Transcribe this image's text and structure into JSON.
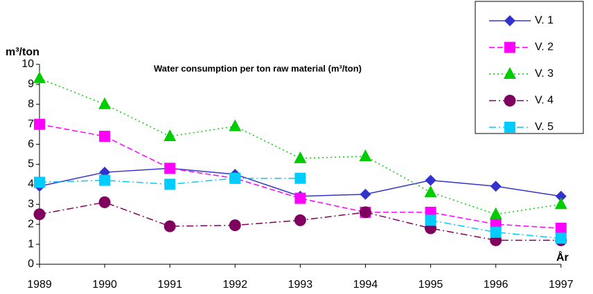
{
  "chart_data": {
    "type": "line",
    "title": "Water consumption per ton raw material (m³/ton)",
    "y_label": "m³/ton",
    "x_label": "År",
    "categories": [
      "1989",
      "1990",
      "1991",
      "1992",
      "1993",
      "1994",
      "1995",
      "1996",
      "1997"
    ],
    "ylim": [
      0,
      10
    ],
    "yticks": [
      0,
      1,
      2,
      3,
      4,
      5,
      6,
      7,
      8,
      9,
      10
    ],
    "grid": false,
    "legend": "upper right",
    "series": [
      {
        "name": "V. 1",
        "color": "#3333cc",
        "marker": "diamond",
        "dash": "solid",
        "values": [
          3.9,
          4.6,
          4.8,
          4.5,
          3.4,
          3.5,
          4.2,
          3.9,
          3.4
        ]
      },
      {
        "name": "V. 2",
        "color": "#ff00ff",
        "marker": "square",
        "dash": "dashed",
        "values": [
          7.0,
          6.4,
          4.8,
          4.3,
          3.3,
          2.6,
          2.6,
          2.0,
          1.8
        ]
      },
      {
        "name": "V. 3",
        "color": "#00cc00",
        "marker": "triangle",
        "dash": "dotted",
        "values": [
          9.3,
          8.0,
          6.4,
          6.9,
          5.3,
          5.4,
          3.6,
          2.5,
          3.0
        ]
      },
      {
        "name": "V. 4",
        "color": "#800060",
        "marker": "circle",
        "dash": "dashdot",
        "values": [
          2.5,
          3.1,
          1.9,
          1.95,
          2.2,
          2.6,
          1.8,
          1.2,
          1.2
        ]
      },
      {
        "name": "V. 5",
        "color": "#00ccff",
        "marker": "square",
        "dash": "dashdot",
        "values": [
          4.1,
          4.2,
          4.0,
          4.3,
          4.3,
          null,
          2.2,
          1.6,
          1.3
        ]
      }
    ]
  }
}
